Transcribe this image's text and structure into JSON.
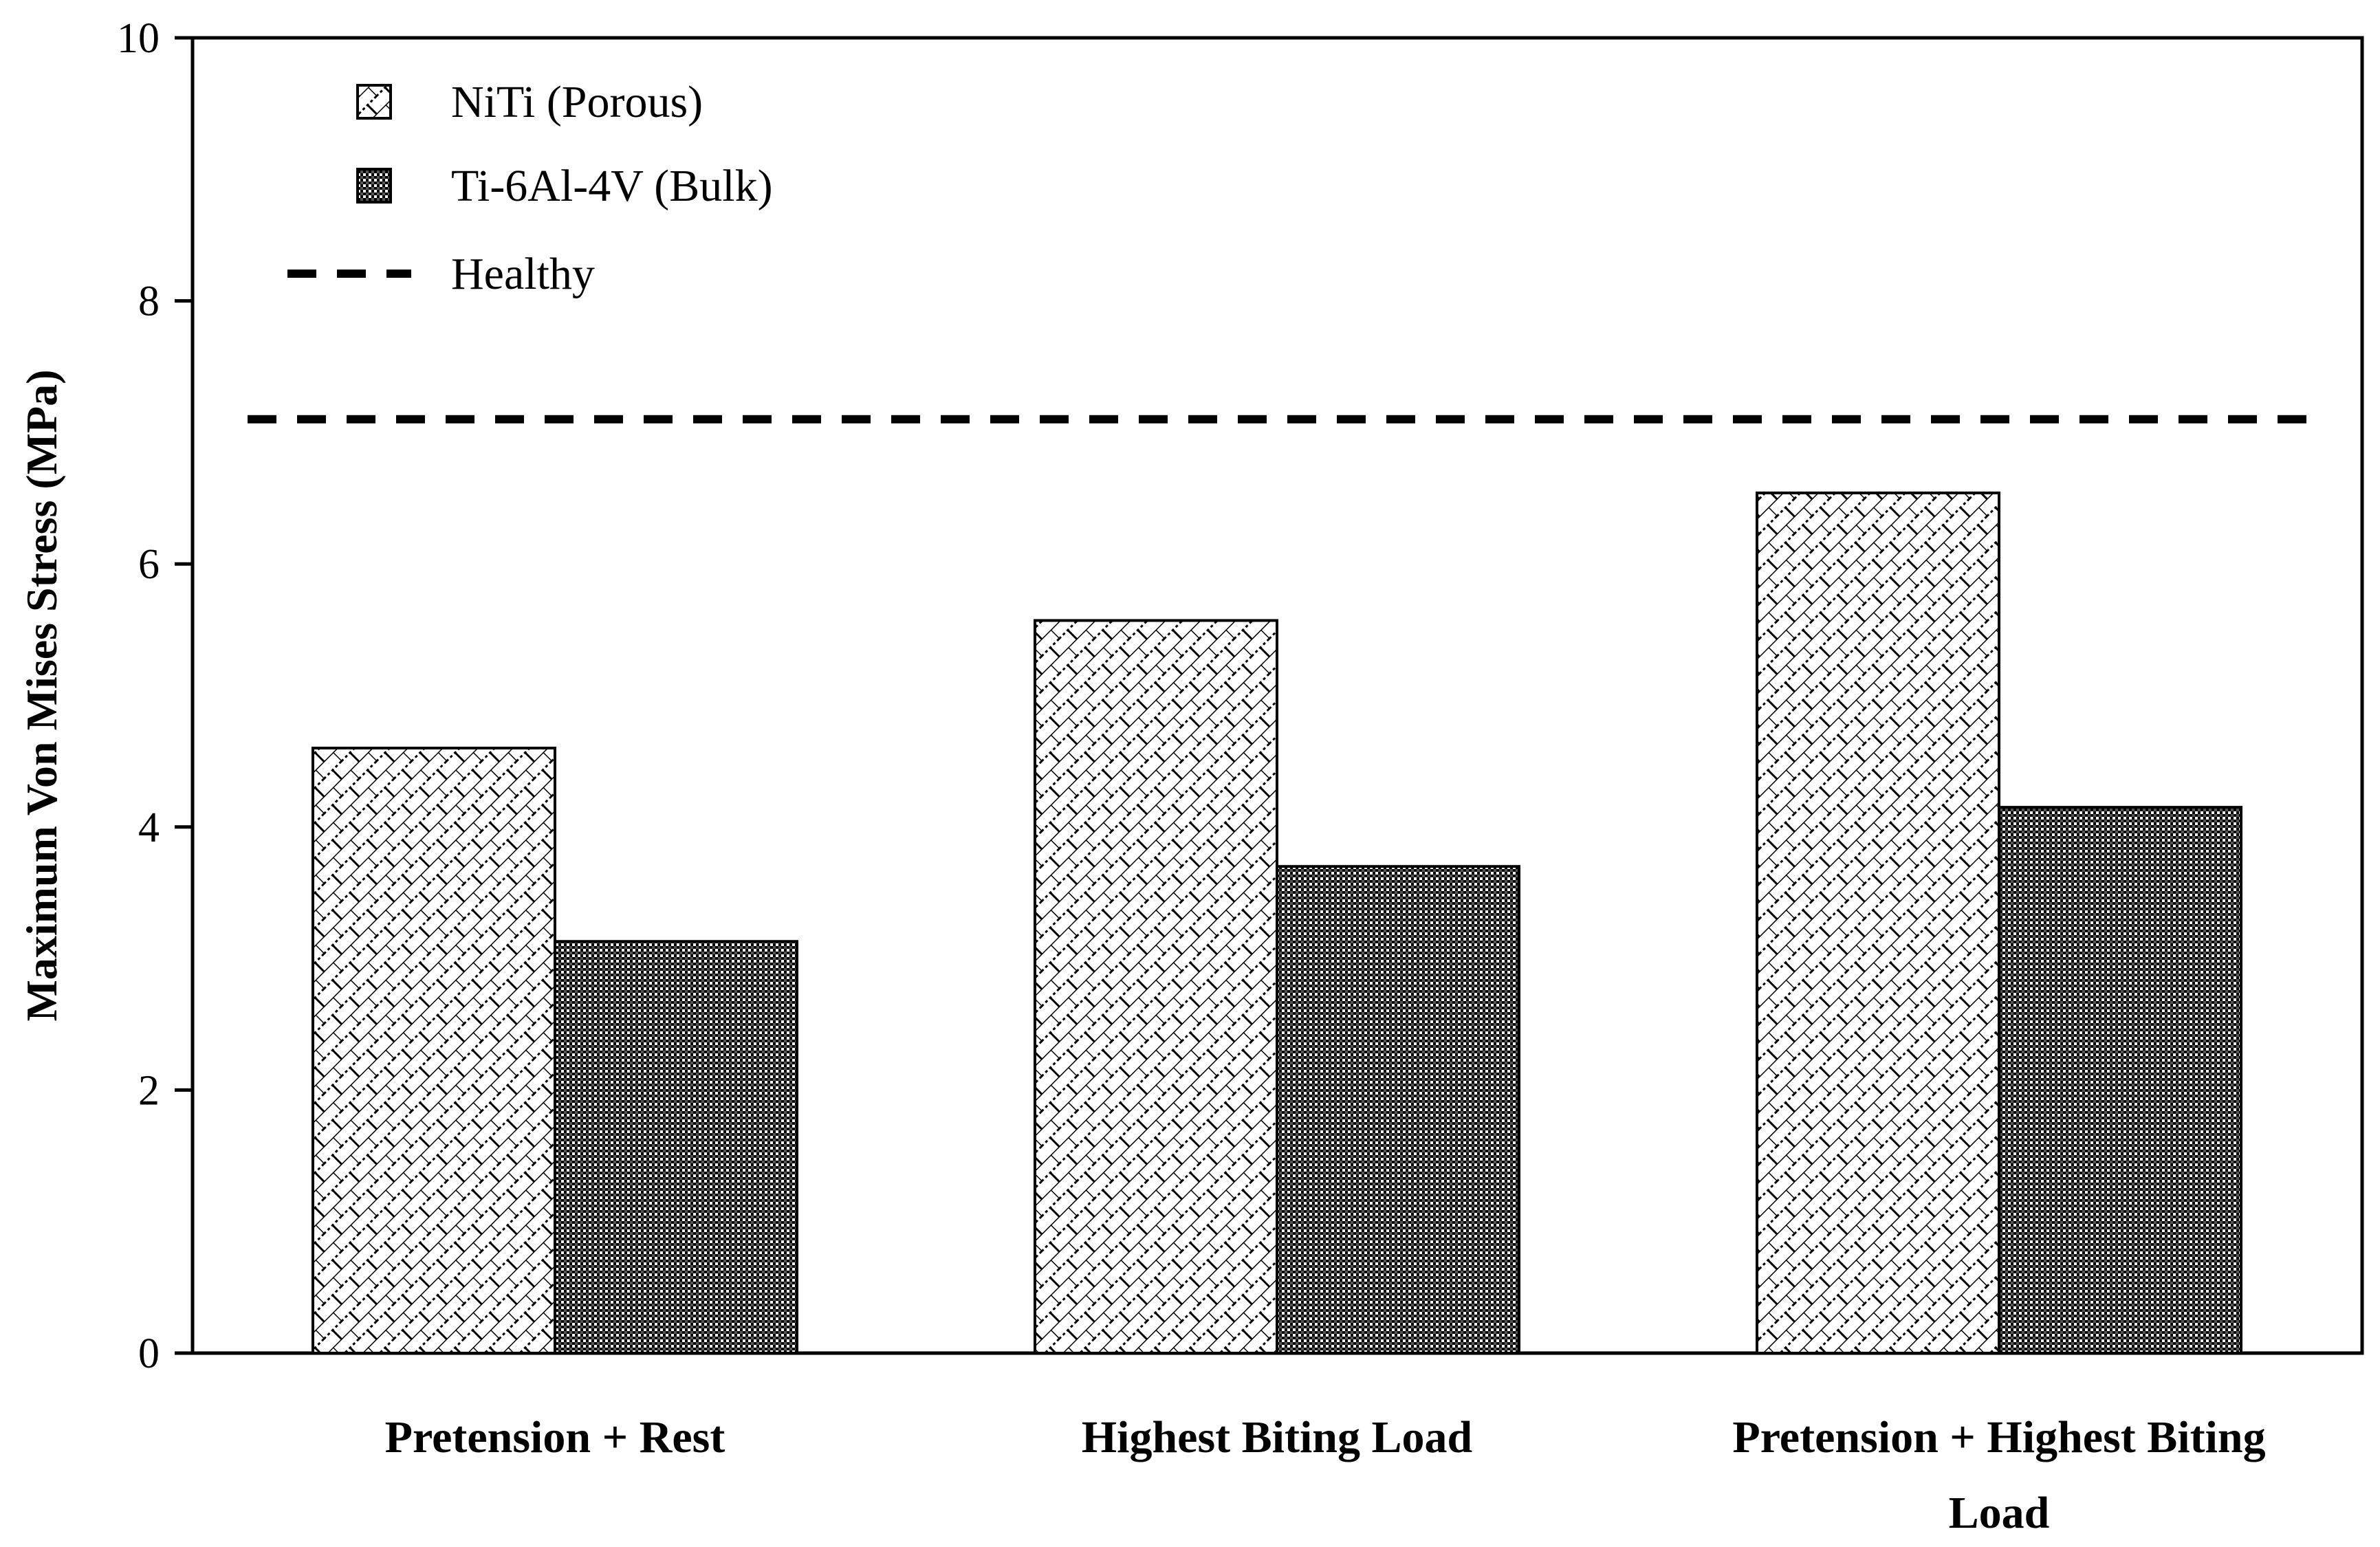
{
  "chart_data": {
    "type": "bar",
    "title": "",
    "xlabel": "",
    "ylabel": "Maximum Von Mises Stress (MPa)",
    "ylim": [
      0,
      10
    ],
    "yticks": [
      0,
      2,
      4,
      6,
      8,
      10
    ],
    "categories": [
      [
        "Pretension + Rest"
      ],
      [
        "Highest Biting Load"
      ],
      [
        "Pretension + Highest Biting",
        "Load"
      ]
    ],
    "series": [
      {
        "name": "NiTi (Porous)",
        "values": [
          4.6,
          5.57,
          6.54
        ],
        "pattern": "diagonal-brick"
      },
      {
        "name": "Ti-6Al-4V (Bulk)",
        "values": [
          3.13,
          3.7,
          4.15
        ],
        "pattern": "dense-checker"
      }
    ],
    "reference_lines": [
      {
        "name": "Healthy",
        "value": 7.1,
        "style": "dashed"
      }
    ],
    "legend": "top-left",
    "grid": false
  }
}
